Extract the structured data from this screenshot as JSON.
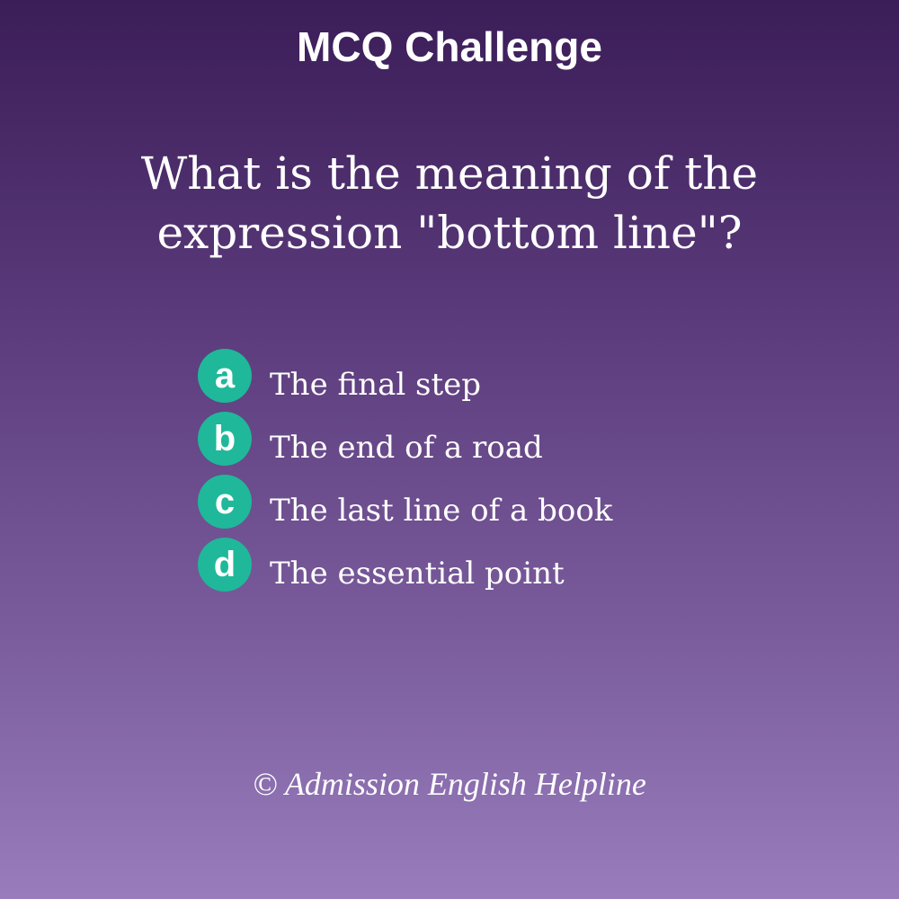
{
  "header": {
    "title": "MCQ Challenge"
  },
  "question": {
    "text": "What is the meaning of the expression \"bottom line\"?"
  },
  "options": [
    {
      "letter": "a",
      "text": "The final step"
    },
    {
      "letter": "b",
      "text": "The end of a road"
    },
    {
      "letter": "c",
      "text": "The last line of a book"
    },
    {
      "letter": "d",
      "text": "The essential point"
    }
  ],
  "footer": {
    "copyright": "© Admission English Helpline"
  },
  "colors": {
    "badge": "#1fb89a",
    "background_top": "#3b1d58",
    "background_bottom": "#987cbc",
    "text": "#ffffff"
  }
}
